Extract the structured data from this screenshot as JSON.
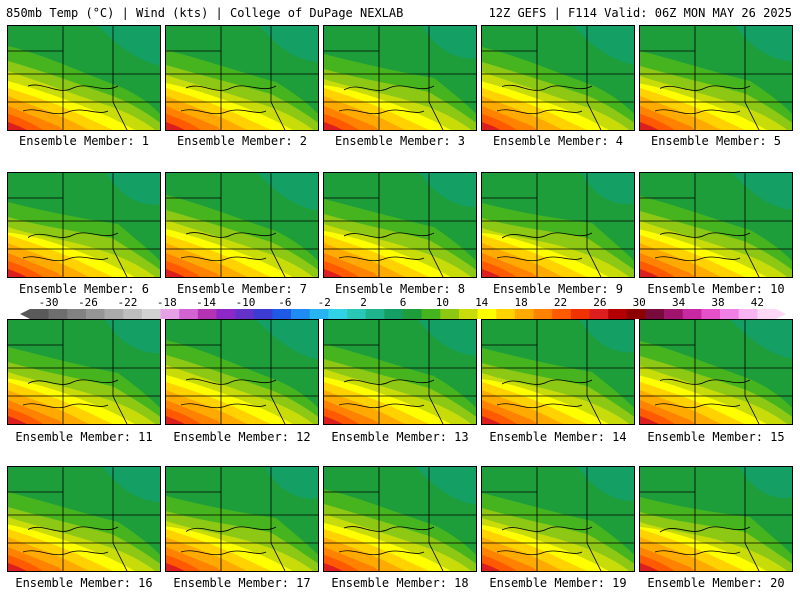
{
  "header": {
    "left": "850mb Temp (°C) | Wind (kts) | College of DuPage NEXLAB",
    "right": "12Z GEFS | F114 Valid: 06Z MON MAY 26 2025"
  },
  "panels": [
    {
      "label": "Ensemble Member: 1"
    },
    {
      "label": "Ensemble Member: 2"
    },
    {
      "label": "Ensemble Member: 3"
    },
    {
      "label": "Ensemble Member: 4"
    },
    {
      "label": "Ensemble Member: 5"
    },
    {
      "label": "Ensemble Member: 6"
    },
    {
      "label": "Ensemble Member: 7"
    },
    {
      "label": "Ensemble Member: 8"
    },
    {
      "label": "Ensemble Member: 9"
    },
    {
      "label": "Ensemble Member: 10"
    },
    {
      "label": "Ensemble Member: 11"
    },
    {
      "label": "Ensemble Member: 12"
    },
    {
      "label": "Ensemble Member: 13"
    },
    {
      "label": "Ensemble Member: 14"
    },
    {
      "label": "Ensemble Member: 15"
    },
    {
      "label": "Ensemble Member: 16"
    },
    {
      "label": "Ensemble Member: 17"
    },
    {
      "label": "Ensemble Member: 18"
    },
    {
      "label": "Ensemble Member: 19"
    },
    {
      "label": "Ensemble Member: 20"
    }
  ],
  "colorbar": {
    "labels": [
      "-30",
      "-26",
      "-22",
      "-18",
      "-14",
      "-10",
      "-6",
      "-2",
      "2",
      "6",
      "10",
      "14",
      "18",
      "22",
      "26",
      "30",
      "34",
      "38",
      "42"
    ],
    "colors": [
      "#5a5a5a",
      "#6e6e6e",
      "#828282",
      "#969696",
      "#aaaaaa",
      "#bebebe",
      "#d2d2d2",
      "#e6a0e6",
      "#d264d2",
      "#b432b4",
      "#8c28c8",
      "#6432c8",
      "#3c3cd2",
      "#1e5ae6",
      "#1e8cf0",
      "#28b4f0",
      "#32d2e6",
      "#28c8b4",
      "#1eb48c",
      "#14a064",
      "#1e9e3a",
      "#46b41e",
      "#8cc814",
      "#c8dc0a",
      "#ffff00",
      "#ffd200",
      "#ffaa00",
      "#ff8200",
      "#ff5a00",
      "#f03200",
      "#dc1e1e",
      "#b40000",
      "#8c0000",
      "#780a3c",
      "#a0146e",
      "#c828a0",
      "#e650c8",
      "#f080e6",
      "#f8b4f0",
      "#ffd8f8"
    ]
  }
}
